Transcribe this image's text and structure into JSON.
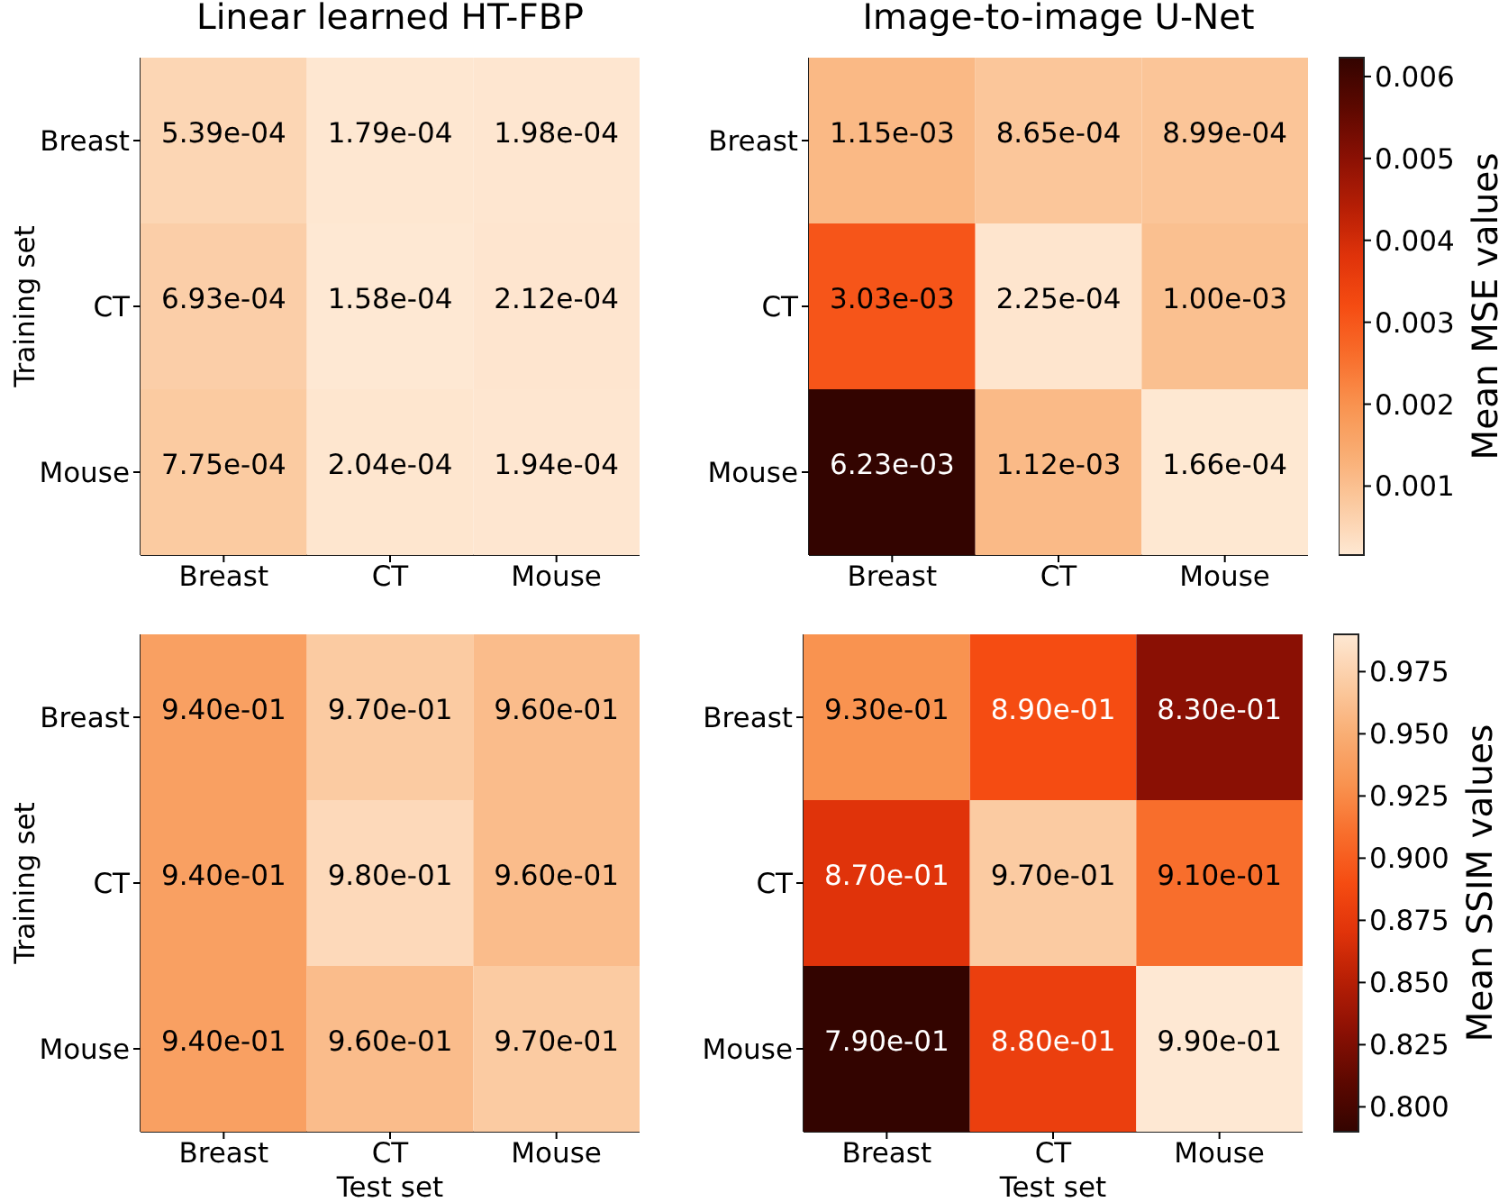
{
  "chart_data": [
    {
      "type": "heatmap",
      "title": "Linear learned HT-FBP",
      "ylabel": "Training set",
      "categories": [
        "Breast",
        "CT",
        "Mouse"
      ],
      "y_categories": [
        "Breast",
        "CT",
        "Mouse"
      ],
      "cells": [
        [
          0.000539,
          0.000179,
          0.000198
        ],
        [
          0.000693,
          0.000158,
          0.000212
        ],
        [
          0.000775,
          0.000204,
          0.000194
        ]
      ],
      "cell_labels": [
        [
          "5.39e-04",
          "1.79e-04",
          "1.98e-04"
        ],
        [
          "6.93e-04",
          "1.58e-04",
          "2.12e-04"
        ],
        [
          "7.75e-04",
          "2.04e-04",
          "1.94e-04"
        ]
      ]
    },
    {
      "type": "heatmap",
      "title": "Image-to-image U-Net",
      "categories": [
        "Breast",
        "CT",
        "Mouse"
      ],
      "y_categories": [
        "Breast",
        "CT",
        "Mouse"
      ],
      "cells": [
        [
          0.00115,
          0.000865,
          0.000899
        ],
        [
          0.00303,
          0.000225,
          0.001
        ],
        [
          0.00623,
          0.00112,
          0.000166
        ]
      ],
      "cell_labels": [
        [
          "1.15e-03",
          "8.65e-04",
          "8.99e-04"
        ],
        [
          "3.03e-03",
          "2.25e-04",
          "1.00e-03"
        ],
        [
          "6.23e-03",
          "1.12e-03",
          "1.66e-04"
        ]
      ],
      "clim": [
        0.000158,
        0.00623
      ],
      "cticks": [
        0.001,
        0.002,
        0.003,
        0.004,
        0.005,
        0.006
      ],
      "clabel": "Mean MSE values"
    },
    {
      "type": "heatmap",
      "xlabel": "Test set",
      "ylabel": "Training set",
      "categories": [
        "Breast",
        "CT",
        "Mouse"
      ],
      "y_categories": [
        "Breast",
        "CT",
        "Mouse"
      ],
      "cells": [
        [
          0.94,
          0.97,
          0.96
        ],
        [
          0.94,
          0.98,
          0.96
        ],
        [
          0.94,
          0.96,
          0.97
        ]
      ],
      "cell_labels": [
        [
          "9.40e-01",
          "9.70e-01",
          "9.60e-01"
        ],
        [
          "9.40e-01",
          "9.80e-01",
          "9.60e-01"
        ],
        [
          "9.40e-01",
          "9.60e-01",
          "9.70e-01"
        ]
      ]
    },
    {
      "type": "heatmap",
      "xlabel": "Test set",
      "categories": [
        "Breast",
        "CT",
        "Mouse"
      ],
      "y_categories": [
        "Breast",
        "CT",
        "Mouse"
      ],
      "cells": [
        [
          0.93,
          0.89,
          0.83
        ],
        [
          0.87,
          0.97,
          0.91
        ],
        [
          0.79,
          0.88,
          0.99
        ]
      ],
      "cell_labels": [
        [
          "9.30e-01",
          "8.90e-01",
          "8.30e-01"
        ],
        [
          "8.70e-01",
          "9.70e-01",
          "9.10e-01"
        ],
        [
          "7.90e-01",
          "8.80e-01",
          "9.90e-01"
        ]
      ],
      "clim": [
        0.99,
        0.79
      ],
      "cticks": [
        {
          "value": 0.8,
          "label": "0.800"
        },
        0.825,
        {
          "value": 0.85,
          "label": "0.850"
        },
        0.875,
        {
          "value": 0.9,
          "label": "0.900"
        },
        0.925,
        {
          "value": 0.95,
          "label": "0.950"
        },
        0.975
      ],
      "clabel": "Mean SSIM values"
    }
  ]
}
